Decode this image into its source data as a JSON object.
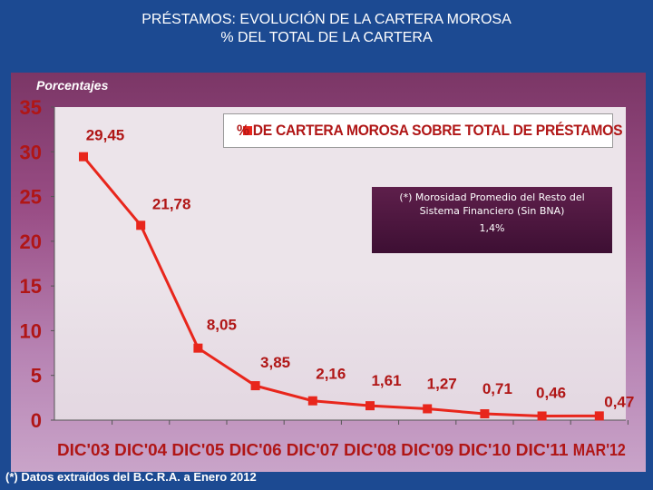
{
  "header": {
    "title_line1": "PRÉSTAMOS: EVOLUCIÓN DE LA CARTERA MOROSA",
    "title_line2": "% DEL TOTAL DE LA CARTERA"
  },
  "colors": {
    "series": "#e8261c",
    "text_accent": "#b01616",
    "background": "#1c4a92"
  },
  "note": {
    "text": "(*) Morosidad Promedio del Resto del Sistema Financiero (Sin BNA)",
    "value": "1,4%"
  },
  "footnote": "(*) Datos extraídos del B.C.R.A. a Enero 2012",
  "chart_data": {
    "type": "line",
    "ylabel": "Porcentajes",
    "categories": [
      "DIC'03",
      "DIC'04",
      "DIC'05",
      "DIC'06",
      "DIC'07",
      "DIC'08",
      "DIC'09",
      "DIC'10",
      "DIC'11",
      "MAR'12"
    ],
    "series": [
      {
        "name": "% DE CARTERA MOROSA SOBRE TOTAL DE PRÉSTAMOS",
        "values": [
          29.45,
          21.78,
          8.05,
          3.85,
          2.16,
          1.61,
          1.27,
          0.71,
          0.46,
          0.47
        ],
        "labels": [
          "29,45",
          "21,78",
          "8,05",
          "3,85",
          "2,16",
          "1,61",
          "1,27",
          "0,71",
          "0,46",
          "0,47"
        ]
      }
    ],
    "ylim": [
      0,
      35
    ],
    "yticks": [
      0,
      5,
      10,
      15,
      20,
      25,
      30,
      35
    ],
    "grid": false,
    "legend_position": "top"
  }
}
